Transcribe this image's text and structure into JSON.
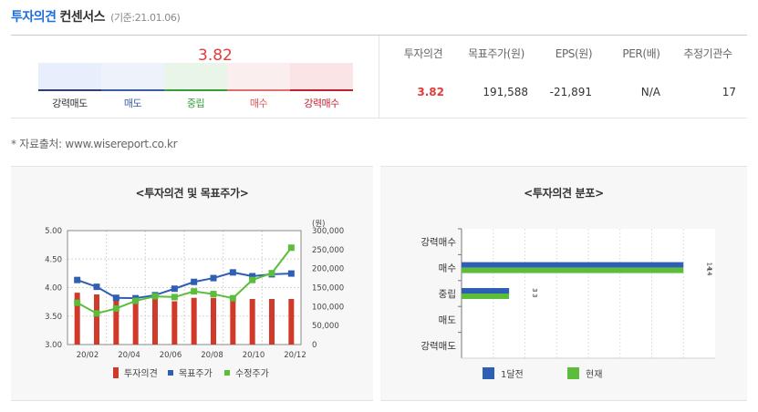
{
  "header": {
    "title": "투자의견",
    "subtitle": "컨센서스",
    "date": "(기준:21.01.06)"
  },
  "gauge": {
    "value": "3.82",
    "score": 3.82,
    "segments": [
      {
        "label": "강력매도",
        "bg": "#e8eefb",
        "line": "#2c3f75",
        "text": "#333333"
      },
      {
        "label": "매도",
        "bg": "#eef3fb",
        "line": "#3e5ba8",
        "text": "#3e5ba8"
      },
      {
        "label": "중립",
        "bg": "#e9f5e9",
        "line": "#3a9b3a",
        "text": "#3a9b3a"
      },
      {
        "label": "매수",
        "bg": "#fbeeee",
        "line": "#e07070",
        "text": "#e05050"
      },
      {
        "label": "강력매수",
        "bg": "#fbe4e6",
        "line": "#c0202f",
        "text": "#c0202f"
      }
    ]
  },
  "consensus_table": {
    "headers": [
      "투자의견",
      "목표주가(원)",
      "EPS(원)",
      "PER(배)",
      "추정기관수"
    ],
    "values": [
      "3.82",
      "191,588",
      "-21,891",
      "N/A",
      "17"
    ]
  },
  "source": "* 자료출처: www.wisereport.co.kr",
  "chart_data": [
    {
      "type": "bar+line",
      "title": "<투자의견 및 목표주가>",
      "x": [
        "20/02",
        "20/03",
        "20/04",
        "20/05",
        "20/06",
        "20/07",
        "20/08",
        "20/09",
        "20/10",
        "20/11",
        "20/12",
        "21/01"
      ],
      "x_tick_labels": [
        "20/02",
        "20/04",
        "20/06",
        "20/08",
        "20/10",
        "20/12"
      ],
      "y_left": {
        "min": 3.0,
        "max": 5.0,
        "ticks": [
          "5.00",
          "4.50",
          "4.00",
          "3.50",
          "3.00"
        ]
      },
      "y_right": {
        "unit": "(원)",
        "min": 0,
        "max": 300000,
        "ticks": [
          "300,000",
          "250,000",
          "200,000",
          "150,000",
          "100,000",
          "50,000",
          "0"
        ]
      },
      "legend": [
        "투자의견",
        "목표주가",
        "수정주가"
      ],
      "colors": {
        "opinion": "#cf3a2a",
        "target": "#2f5fb3",
        "price": "#5bbd3a"
      },
      "series": [
        {
          "name": "투자의견",
          "axis": "left",
          "kind": "bar",
          "values": [
            3.91,
            3.88,
            3.8,
            3.8,
            3.8,
            3.76,
            3.82,
            3.82,
            3.8,
            3.8,
            3.8,
            3.8
          ]
        },
        {
          "name": "목표주가",
          "axis": "right",
          "kind": "line",
          "values": [
            170000,
            152000,
            123000,
            122000,
            130000,
            147000,
            165000,
            175000,
            190000,
            180000,
            185000,
            187000
          ]
        },
        {
          "name": "수정주가",
          "axis": "right",
          "kind": "line",
          "values": [
            110000,
            82000,
            95000,
            115000,
            127000,
            125000,
            140000,
            133000,
            122000,
            170000,
            188000,
            255000
          ]
        }
      ]
    },
    {
      "type": "horizontal-bar",
      "title": "<투자의견 분포>",
      "categories": [
        "강력매수",
        "매수",
        "중립",
        "매도",
        "강력매도"
      ],
      "xlim": [
        0,
        16
      ],
      "legend": [
        "1달전",
        "현재"
      ],
      "colors": {
        "1달전": "#2f5fb3",
        "현재": "#5bbd3a"
      },
      "series": [
        {
          "name": "1달전",
          "values": [
            0,
            14,
            3,
            0,
            0
          ],
          "labels": [
            "",
            "14",
            "3",
            "",
            ""
          ]
        },
        {
          "name": "현재",
          "values": [
            0,
            14,
            3,
            0,
            0
          ],
          "labels": [
            "",
            "14",
            "3",
            "",
            ""
          ]
        }
      ]
    }
  ]
}
